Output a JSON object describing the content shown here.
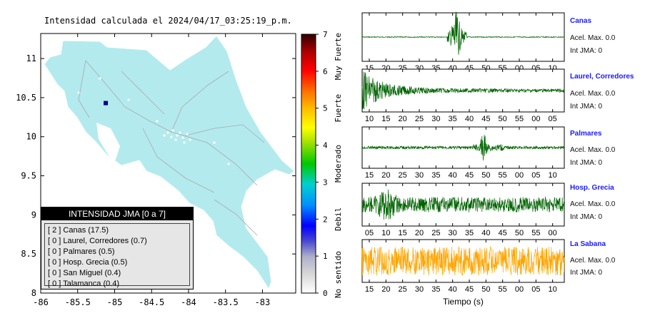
{
  "map": {
    "title": "Intensidad calculada el 2024/04/17_03:25:19_p.m.",
    "lon_ticks": [
      "-86",
      "-85.5",
      "-85",
      "-84.5",
      "-84",
      "-83.5",
      "-83"
    ],
    "lat_ticks": [
      "8",
      "8.5",
      "9",
      "9.5",
      "10",
      "10.5",
      "11"
    ],
    "land_color": "#b3eaee",
    "station_marker": {
      "lon": -85.12,
      "lat": 10.43,
      "color": "#000080"
    }
  },
  "colorbar": {
    "ticks": [
      "0",
      "1",
      "2",
      "3",
      "4",
      "5",
      "6",
      "7"
    ],
    "labels": [
      "No sentido",
      "Debil",
      "Moderado",
      "Fuerte",
      "Muy Fuerte"
    ]
  },
  "legend": {
    "title": "INTENSIDAD JMA [0 a 7]",
    "items": [
      "[ 2 ]  Canas (17.5)",
      "[ 0 ]  Laurel, Corredores (0.7)",
      "[ 0 ]  Palmares (0.5)",
      "[ 0 ]  Hosp. Grecia (0.5)",
      "[ 0 ]  San Miguel (0.4)",
      "[ 0 ]  Talamanca (0.4)"
    ]
  },
  "time_label": "Tiempo (s)",
  "chart_data": {
    "type": "line",
    "x_unit": "s",
    "series": [
      {
        "name": "Canas",
        "accel": "Acel. Max. 0.0",
        "int": "Int JMA: 0",
        "color": "#006400",
        "ticks": [
          "15",
          "20",
          "25",
          "30",
          "35",
          "40",
          "45",
          "50",
          "55",
          "00",
          "05",
          "10"
        ],
        "pattern": "burst-late"
      },
      {
        "name": "Laurel, Corredores",
        "accel": "Acel. Max. 0.0",
        "int": "Int JMA: 0",
        "color": "#006400",
        "ticks": [
          "10",
          "15",
          "20",
          "25",
          "30",
          "35",
          "40",
          "45",
          "50",
          "55",
          "00",
          "05"
        ],
        "pattern": "decay"
      },
      {
        "name": "Palmares",
        "accel": "Acel. Max. 0.0",
        "int": "Int JMA: 0",
        "color": "#006400",
        "ticks": [
          "15",
          "20",
          "25",
          "30",
          "35",
          "40",
          "45",
          "50",
          "55",
          "00",
          "05",
          "10"
        ],
        "pattern": "spike"
      },
      {
        "name": "Hosp. Grecia",
        "accel": "Acel. Max. 0.0",
        "int": "Int JMA: 0",
        "color": "#006400",
        "ticks": [
          "05",
          "10",
          "15",
          "20",
          "25",
          "30",
          "35",
          "40",
          "45",
          "50",
          "55",
          "00"
        ],
        "pattern": "noise"
      },
      {
        "name": "La Sabana",
        "accel": "Acel. Max. 0.0",
        "int": "Int JMA: 0",
        "color": "#ffa500",
        "ticks": [
          "15",
          "20",
          "25",
          "30",
          "35",
          "40",
          "45",
          "50",
          "55",
          "00",
          "05",
          "10"
        ],
        "pattern": "noise-strong"
      }
    ]
  }
}
